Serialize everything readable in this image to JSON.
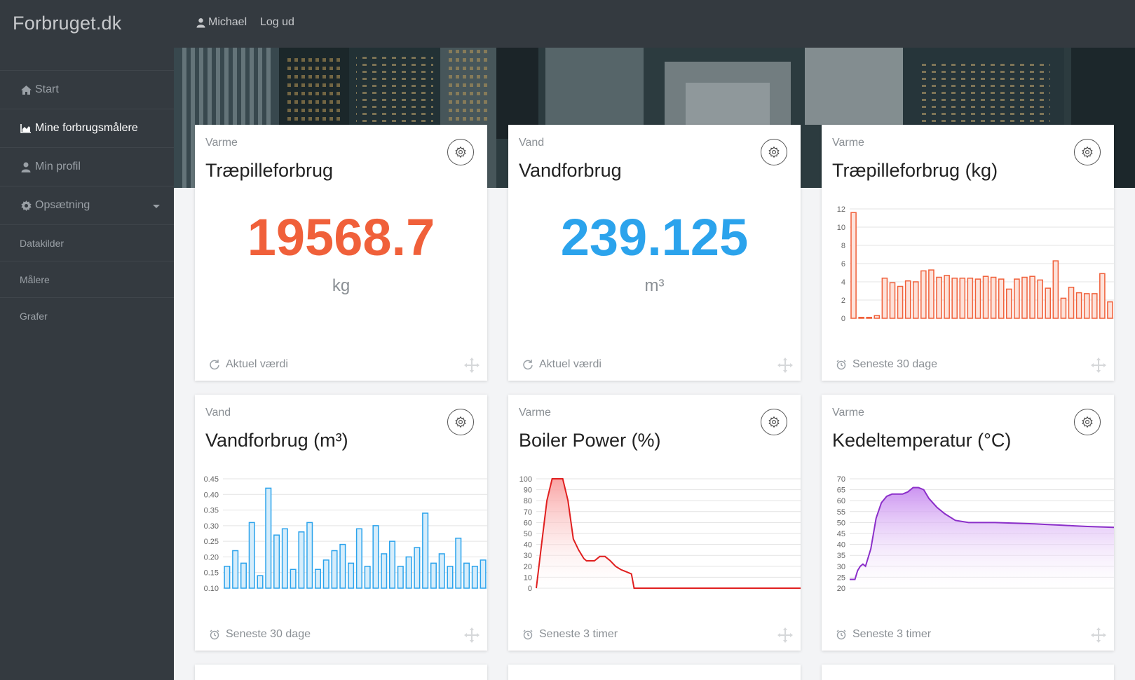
{
  "brand": "Forbruget.dk",
  "topbar": {
    "user": "Michael",
    "logout": "Log ud"
  },
  "nav": {
    "start": "Start",
    "meters": "Mine forbrugsmålere",
    "profile": "Min profil",
    "settings": "Opsætning",
    "datasources": "Datakilder",
    "gauges": "Målere",
    "graphs": "Grafer"
  },
  "cards": [
    {
      "category": "Varme",
      "title": "Træpilleforbrug",
      "value": "19568.7",
      "unit": "kg",
      "footer": "Aktuel værdi",
      "color": "#f0603a"
    },
    {
      "category": "Vand",
      "title": "Vandforbrug",
      "value": "239.125",
      "unit": "m³",
      "footer": "Aktuel værdi",
      "color": "#2ba3ec"
    },
    {
      "category": "Varme",
      "title": "Træpilleforbrug (kg)",
      "footer": "Seneste 30 dage"
    },
    {
      "category": "Vand",
      "title": "Vandforbrug (m³)",
      "footer": "Seneste 30 dage"
    },
    {
      "category": "Varme",
      "title": "Boiler Power (%)",
      "footer": "Seneste 3 timer"
    },
    {
      "category": "Varme",
      "title": "Kedeltemperatur (°C)",
      "footer": "Seneste 3 timer"
    }
  ],
  "chart_data": [
    {
      "type": "bar",
      "title": "Træpilleforbrug (kg)",
      "ylim": [
        0,
        12
      ],
      "yticks": [
        "0",
        "2",
        "4",
        "6",
        "8",
        "10",
        "12"
      ],
      "values": [
        11.6,
        0.1,
        0.1,
        0.3,
        4.4,
        3.9,
        3.5,
        4.1,
        4.0,
        5.2,
        5.3,
        4.5,
        4.7,
        4.4,
        4.4,
        4.4,
        4.3,
        4.6,
        4.5,
        4.3,
        3.2,
        4.3,
        4.5,
        4.6,
        4.2,
        3.3,
        6.3,
        2.2,
        3.4,
        2.8,
        2.7,
        2.7,
        4.9,
        1.8
      ],
      "color": "#f0603a",
      "fill": "#fde2da"
    },
    {
      "type": "bar",
      "title": "Vandforbrug (m³)",
      "ylim": [
        0.1,
        0.45
      ],
      "yticks": [
        "0.10",
        "0.15",
        "0.20",
        "0.25",
        "0.30",
        "0.35",
        "0.40",
        "0.45"
      ],
      "values": [
        0.17,
        0.22,
        0.18,
        0.31,
        0.14,
        0.42,
        0.27,
        0.29,
        0.16,
        0.28,
        0.31,
        0.16,
        0.19,
        0.22,
        0.24,
        0.18,
        0.29,
        0.17,
        0.3,
        0.21,
        0.25,
        0.17,
        0.2,
        0.23,
        0.34,
        0.18,
        0.21,
        0.17,
        0.26,
        0.18,
        0.17,
        0.19
      ],
      "color": "#2ba3ec",
      "fill": "#d6edfb"
    },
    {
      "type": "area",
      "title": "Boiler Power (%)",
      "ylim": [
        0,
        100
      ],
      "yticks": [
        "0",
        "10",
        "20",
        "30",
        "40",
        "50",
        "60",
        "70",
        "80",
        "90",
        "100"
      ],
      "x": [
        0,
        2,
        4,
        6,
        8,
        10,
        12,
        14,
        16,
        18,
        19,
        20,
        22,
        24,
        26,
        28,
        30,
        32,
        34,
        36,
        37,
        38,
        100
      ],
      "values": [
        0,
        40,
        80,
        100,
        100,
        100,
        80,
        45,
        35,
        27,
        25,
        25,
        25,
        29,
        29,
        25,
        20,
        17,
        15,
        13,
        0,
        0,
        0
      ],
      "color": "#e01f1f",
      "fill": "#f9a0a0"
    },
    {
      "type": "area",
      "title": "Kedeltemperatur (°C)",
      "ylim": [
        20,
        70
      ],
      "yticks": [
        "20",
        "25",
        "30",
        "35",
        "40",
        "45",
        "50",
        "55",
        "60",
        "65",
        "70"
      ],
      "x": [
        0,
        2,
        3,
        4,
        5,
        6,
        8,
        10,
        12,
        14,
        16,
        18,
        20,
        22,
        24,
        26,
        28,
        30,
        33,
        36,
        40,
        45,
        50,
        55,
        60,
        65,
        70,
        75,
        80,
        85,
        90,
        95,
        100
      ],
      "values": [
        24,
        24,
        28,
        30,
        31,
        30,
        38,
        52,
        59,
        62,
        63,
        63,
        63,
        64,
        66,
        66,
        65,
        61,
        57,
        54,
        51,
        50,
        50,
        50,
        49.8,
        49.6,
        49.4,
        49.1,
        48.8,
        48.5,
        48.2,
        48,
        47.8
      ],
      "color": "#8b2fc9",
      "fill": "#c98ef0"
    }
  ]
}
